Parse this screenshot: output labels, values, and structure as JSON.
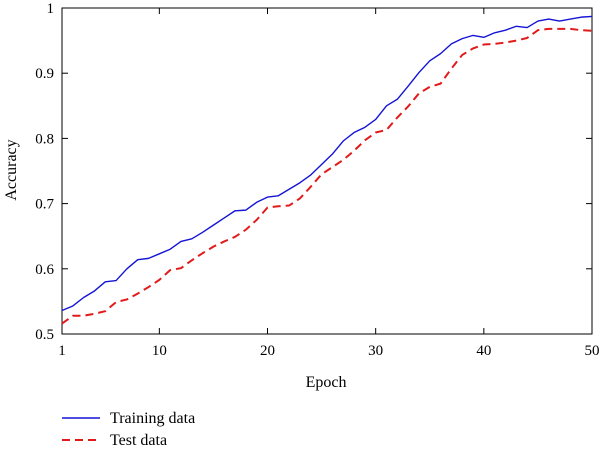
{
  "chart_data": {
    "type": "line",
    "xlabel": "Epoch",
    "ylabel": "Accuracy",
    "xlim": [
      1,
      50
    ],
    "ylim": [
      0.5,
      1.0
    ],
    "x_ticks": [
      1,
      10,
      20,
      30,
      40,
      50
    ],
    "y_ticks": [
      0.5,
      0.6,
      0.7,
      0.8,
      0.9,
      1.0
    ],
    "y_tick_labels": [
      "0.5",
      "0.6",
      "0.7",
      "0.8",
      "0.9",
      "1"
    ],
    "grid": false,
    "legend_placement": "bottom-left, below plot",
    "x": [
      1,
      2,
      3,
      4,
      5,
      6,
      7,
      8,
      9,
      10,
      11,
      12,
      13,
      14,
      15,
      16,
      17,
      18,
      19,
      20,
      21,
      22,
      23,
      24,
      25,
      26,
      27,
      28,
      29,
      30,
      31,
      32,
      33,
      34,
      35,
      36,
      37,
      38,
      39,
      40,
      41,
      42,
      43,
      44,
      45,
      46,
      47,
      48,
      49,
      50
    ],
    "series": [
      {
        "name": "Training data",
        "color": "#1414d4",
        "dash": "solid",
        "values": [
          0.536,
          0.543,
          0.556,
          0.566,
          0.58,
          0.582,
          0.6,
          0.614,
          0.616,
          0.623,
          0.63,
          0.642,
          0.646,
          0.656,
          0.667,
          0.678,
          0.689,
          0.69,
          0.702,
          0.71,
          0.712,
          0.722,
          0.732,
          0.744,
          0.76,
          0.776,
          0.796,
          0.809,
          0.817,
          0.829,
          0.85,
          0.86,
          0.88,
          0.901,
          0.919,
          0.93,
          0.945,
          0.953,
          0.958,
          0.955,
          0.962,
          0.966,
          0.972,
          0.97,
          0.98,
          0.983,
          0.98,
          0.983,
          0.986,
          0.987
        ]
      },
      {
        "name": "Test data",
        "color": "#e21a1a",
        "dash": "dashed",
        "values": [
          0.516,
          0.528,
          0.528,
          0.531,
          0.535,
          0.549,
          0.553,
          0.562,
          0.572,
          0.583,
          0.598,
          0.601,
          0.613,
          0.624,
          0.634,
          0.642,
          0.649,
          0.66,
          0.675,
          0.694,
          0.696,
          0.697,
          0.708,
          0.726,
          0.745,
          0.756,
          0.767,
          0.781,
          0.797,
          0.809,
          0.813,
          0.832,
          0.849,
          0.869,
          0.879,
          0.884,
          0.907,
          0.928,
          0.938,
          0.944,
          0.945,
          0.947,
          0.95,
          0.954,
          0.966,
          0.968,
          0.968,
          0.968,
          0.966,
          0.965
        ]
      }
    ]
  }
}
